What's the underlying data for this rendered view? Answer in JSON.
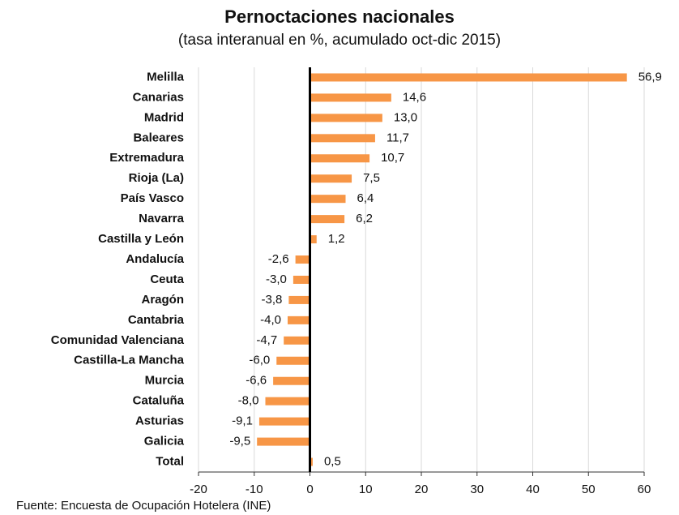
{
  "chart_data": {
    "type": "bar",
    "orientation": "horizontal",
    "title": "Pernoctaciones nacionales",
    "subtitle": "(tasa interanual en %, acumulado oct-dic 2015)",
    "source": "Fuente: Encuesta de Ocupación Hotelera (INE)",
    "categories": [
      "Melilla",
      "Canarias",
      "Madrid",
      "Baleares",
      "Extremadura",
      "Rioja (La)",
      "País Vasco",
      "Navarra",
      "Castilla y León",
      "Andalucía",
      "Ceuta",
      "Aragón",
      "Cantabria",
      "Comunidad Valenciana",
      "Castilla-La Mancha",
      "Murcia",
      "Cataluña",
      "Asturias",
      "Galicia",
      "Total"
    ],
    "values": [
      56.9,
      14.6,
      13.0,
      11.7,
      10.7,
      7.5,
      6.4,
      6.2,
      1.2,
      -2.6,
      -3.0,
      -3.8,
      -4.0,
      -4.7,
      -6.0,
      -6.6,
      -8.0,
      -9.1,
      -9.5,
      0.5
    ],
    "value_labels": [
      "56,9",
      "14,6",
      "13,0",
      "11,7",
      "10,7",
      "7,5",
      "6,4",
      "6,2",
      "1,2",
      "-2,6",
      "-3,0",
      "-3,8",
      "-4,0",
      "-4,7",
      "-6,0",
      "-6,6",
      "-8,0",
      "-9,1",
      "-9,5",
      "0,5"
    ],
    "color": "#f79646",
    "xlim": [
      -20,
      60
    ],
    "xticks": [
      -20,
      -10,
      0,
      10,
      20,
      30,
      40,
      50,
      60
    ],
    "grid": true
  }
}
